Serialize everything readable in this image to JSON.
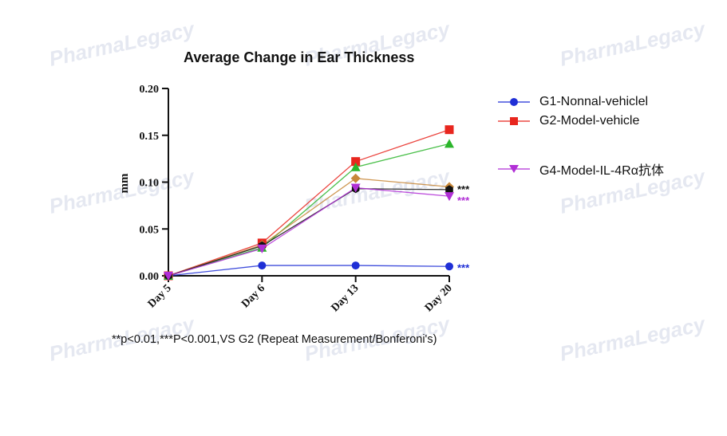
{
  "chart_data": {
    "type": "line",
    "title": "Average Change in Ear Thickness",
    "xlabel": "",
    "ylabel": "mm",
    "categories": [
      "Day 5",
      "Day 6",
      "Day 13",
      "Day 20"
    ],
    "ylim": [
      0.0,
      0.2
    ],
    "yticks": [
      "0.00",
      "0.05",
      "0.10",
      "0.15",
      "0.20"
    ],
    "grid": false,
    "legend_position": "right",
    "series": [
      {
        "name": "G1-Nonnal-vehiclel",
        "color": "#1f2fd6",
        "marker": "circle",
        "values": [
          0.0,
          0.011,
          0.011,
          0.01
        ],
        "annotation": "***"
      },
      {
        "name": "G2-Model-vehicle",
        "color": "#e8261e",
        "marker": "square",
        "values": [
          0.0,
          0.035,
          0.122,
          0.156
        ]
      },
      {
        "name": "",
        "color": "#2bb52b",
        "marker": "triangle-up",
        "values": [
          0.0,
          0.03,
          0.116,
          0.141
        ]
      },
      {
        "name": "",
        "color": "#c8883a",
        "marker": "diamond",
        "values": [
          0.0,
          0.033,
          0.104,
          0.095
        ]
      },
      {
        "name": "",
        "color": "#111111",
        "marker": "hexagon",
        "values": [
          0.0,
          0.032,
          0.093,
          0.092
        ],
        "annotation": "***"
      },
      {
        "name": "G4-Model-IL-4Rα抗体",
        "color": "#b12fd6",
        "marker": "triangle-down",
        "values": [
          0.0,
          0.029,
          0.094,
          0.085
        ],
        "annotation": "***"
      }
    ],
    "footnote": "**p<0.01,***P<0.001,VS G2 (Repeat Measurement/Bonferoni's)"
  },
  "legend": [
    {
      "label": "G1-Nonnal-vehiclel",
      "color": "#1f2fd6",
      "marker": "circle"
    },
    {
      "label": "G2-Model-vehicle",
      "color": "#e8261e",
      "marker": "square"
    },
    {
      "label": "G4-Model-IL-4Rα抗体",
      "color": "#b12fd6",
      "marker": "triangle-down"
    }
  ],
  "watermark": {
    "text": "PharmaLegacy"
  }
}
